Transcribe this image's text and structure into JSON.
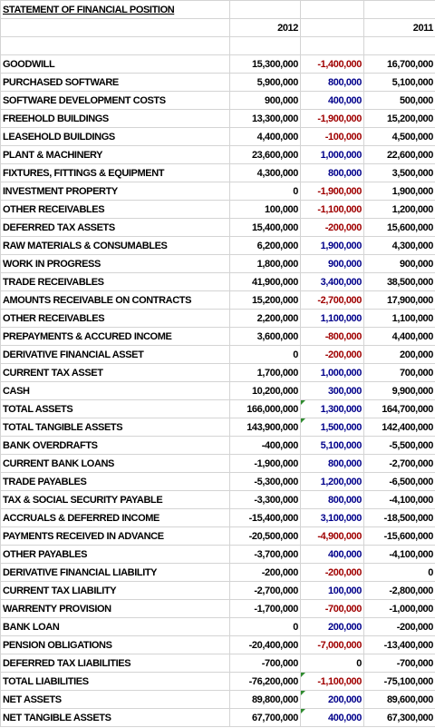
{
  "title": "STATEMENT OF FINANCIAL POSITION",
  "header": {
    "year_1": "2012",
    "year_2": "2011"
  },
  "rows": [
    [
      "GOODWILL",
      "15,300,000",
      "-1,400,000",
      "16,700,000"
    ],
    [
      "PURCHASED SOFTWARE",
      "5,900,000",
      "800,000",
      "5,100,000"
    ],
    [
      "SOFTWARE DEVELOPMENT COSTS",
      "900,000",
      "400,000",
      "500,000"
    ],
    [
      "FREEHOLD BUILDINGS",
      "13,300,000",
      "-1,900,000",
      "15,200,000"
    ],
    [
      "LEASEHOLD BUILDINGS",
      "4,400,000",
      "-100,000",
      "4,500,000"
    ],
    [
      "PLANT & MACHINERY",
      "23,600,000",
      "1,000,000",
      "22,600,000"
    ],
    [
      "FIXTURES, FITTINGS & EQUIPMENT",
      "4,300,000",
      "800,000",
      "3,500,000"
    ],
    [
      "INVESTMENT PROPERTY",
      "0",
      "-1,900,000",
      "1,900,000"
    ],
    [
      "OTHER RECEIVABLES",
      "100,000",
      "-1,100,000",
      "1,200,000"
    ],
    [
      "DEFERRED TAX ASSETS",
      "15,400,000",
      "-200,000",
      "15,600,000"
    ],
    [
      "RAW MATERIALS & CONSUMABLES",
      "6,200,000",
      "1,900,000",
      "4,300,000"
    ],
    [
      "WORK IN PROGRESS",
      "1,800,000",
      "900,000",
      "900,000"
    ],
    [
      "TRADE RECEIVABLES",
      "41,900,000",
      "3,400,000",
      "38,500,000"
    ],
    [
      "AMOUNTS RECEIVABLE ON CONTRACTS",
      "15,200,000",
      "-2,700,000",
      "17,900,000"
    ],
    [
      "OTHER RECEIVABLES",
      "2,200,000",
      "1,100,000",
      "1,100,000"
    ],
    [
      "PREPAYMENTS & ACCURED INCOME",
      "3,600,000",
      "-800,000",
      "4,400,000"
    ],
    [
      "DERIVATIVE FINANCIAL ASSET",
      "0",
      "-200,000",
      "200,000"
    ],
    [
      "CURRENT TAX ASSET",
      "1,700,000",
      "1,000,000",
      "700,000"
    ],
    [
      "CASH",
      "10,200,000",
      "300,000",
      "9,900,000"
    ],
    [
      "TOTAL ASSETS",
      "166,000,000",
      "1,300,000",
      "164,700,000"
    ],
    [
      "TOTAL TANGIBLE ASSETS",
      "143,900,000",
      "1,500,000",
      "142,400,000"
    ],
    [
      "BANK OVERDRAFTS",
      "-400,000",
      "5,100,000",
      "-5,500,000"
    ],
    [
      "CURRENT BANK LOANS",
      "-1,900,000",
      "800,000",
      "-2,700,000"
    ],
    [
      "TRADE PAYABLES",
      "-5,300,000",
      "1,200,000",
      "-6,500,000"
    ],
    [
      "TAX & SOCIAL SECURITY PAYABLE",
      "-3,300,000",
      "800,000",
      "-4,100,000"
    ],
    [
      "ACCRUALS & DEFERRED INCOME",
      "-15,400,000",
      "3,100,000",
      "-18,500,000"
    ],
    [
      "PAYMENTS RECEIVED IN ADVANCE",
      "-20,500,000",
      "-4,900,000",
      "-15,600,000"
    ],
    [
      "OTHER PAYABLES",
      "-3,700,000",
      "400,000",
      "-4,100,000"
    ],
    [
      "DERIVATIVE FINANCIAL LIABILITY",
      "-200,000",
      "-200,000",
      "0"
    ],
    [
      "CURRENT TAX LIABILITY",
      "-2,700,000",
      "100,000",
      "-2,800,000"
    ],
    [
      "WARRENTY PROVISION",
      "-1,700,000",
      "-700,000",
      "-1,000,000"
    ],
    [
      "BANK LOAN",
      "0",
      "200,000",
      "-200,000"
    ],
    [
      "PENSION OBLIGATIONS",
      "-20,400,000",
      "-7,000,000",
      "-13,400,000"
    ],
    [
      "DEFERRED TAX LIABILITIES",
      "-700,000",
      "0",
      "-700,000"
    ],
    [
      "TOTAL LIABILITIES",
      "-76,200,000",
      "-1,100,000",
      "-75,100,000"
    ],
    [
      "NET ASSETS",
      "89,800,000",
      "200,000",
      "89,600,000"
    ],
    [
      "NET TANGIBLE ASSETS",
      "67,700,000",
      "400,000",
      "67,300,000"
    ]
  ]
}
